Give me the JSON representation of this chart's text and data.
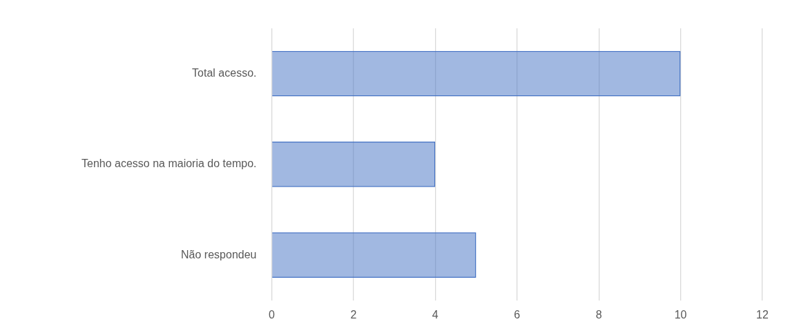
{
  "chart_data": {
    "type": "bar",
    "orientation": "horizontal",
    "categories": [
      "Total acesso.",
      "Tenho acesso na maioria do tempo.",
      "Não respondeu"
    ],
    "values": [
      10,
      4,
      5
    ],
    "color": "#4472c4",
    "xlim": [
      0,
      12
    ],
    "xticks": [
      0,
      2,
      4,
      6,
      8,
      10,
      12
    ],
    "grid": "x"
  }
}
